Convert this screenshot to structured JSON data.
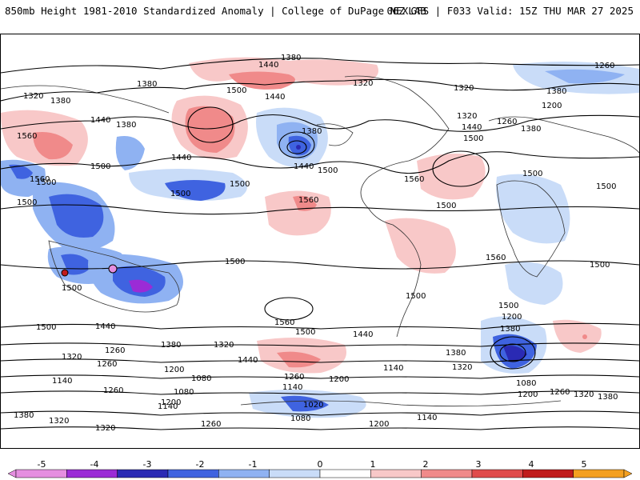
{
  "header": {
    "title": "850mb Height 1981-2010 Standardized Anomaly | College of DuPage NEXLAB",
    "run_info": "06Z GFS | F033 Valid: 15Z THU MAR 27 2025"
  },
  "contour_labels": [
    "1380",
    "1440",
    "1260",
    "1320",
    "1380",
    "1320",
    "1380",
    "1500",
    "1440",
    "1320",
    "1380",
    "1200",
    "1560",
    "1440",
    "1380",
    "1320",
    "1260",
    "1380",
    "1440",
    "1500",
    "1380",
    "1500",
    "1440",
    "1500",
    "1500",
    "1560",
    "1500",
    "1500",
    "1440",
    "1500",
    "1560",
    "1560",
    "1500",
    "1500",
    "1500",
    "1500",
    "1560",
    "1500",
    "1500",
    "1500",
    "1500",
    "1500",
    "1440",
    "1560",
    "1500",
    "1440",
    "1380",
    "1320",
    "1200",
    "1380",
    "1320",
    "1260",
    "1440",
    "1380",
    "1320",
    "1260",
    "1140",
    "1200",
    "1080",
    "1140",
    "1260",
    "1200",
    "1140",
    "1080",
    "1200",
    "1260",
    "1320",
    "1380",
    "1080",
    "1260",
    "1380",
    "1320",
    "1260",
    "1200",
    "1140",
    "1080",
    "1020",
    "1200",
    "1140"
  ],
  "colorbar": {
    "ticks": [
      "-5",
      "-4",
      "-3",
      "-2",
      "-1",
      "0",
      "1",
      "2",
      "3",
      "4",
      "5"
    ],
    "colors": [
      "#e58ee0",
      "#9b2bd6",
      "#2a2ab4",
      "#3f63e0",
      "#8fb2f2",
      "#c9dcf8",
      "#ffffff",
      "#f8c8c8",
      "#f08a8a",
      "#e04b4b",
      "#c01b1b",
      "#f4a020"
    ]
  }
}
